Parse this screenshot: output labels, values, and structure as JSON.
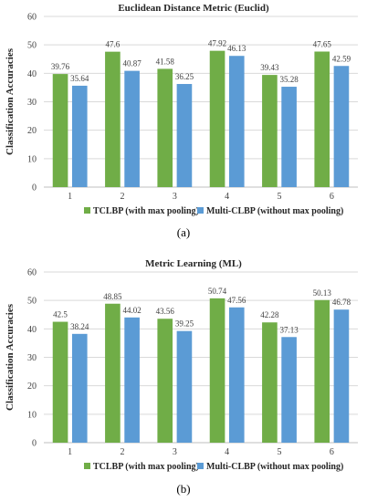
{
  "panels": [
    {
      "caption": "(a)",
      "chart_data": {
        "type": "bar",
        "title": "Euclidean Distance Metric (Euclid)",
        "xlabel": "",
        "ylabel": "Classification Accuracies",
        "categories": [
          "1",
          "2",
          "3",
          "4",
          "5",
          "6"
        ],
        "series": [
          {
            "name": "TCLBP (with max pooling)",
            "color": "#70ad47",
            "values": [
              39.76,
              47.6,
              41.58,
              47.92,
              39.43,
              47.65
            ]
          },
          {
            "name": "Multi-CLBP (without max pooling)",
            "color": "#5b9bd5",
            "values": [
              35.64,
              40.87,
              36.25,
              46.13,
              35.28,
              42.59
            ]
          }
        ],
        "ylim": [
          0,
          60
        ],
        "yticks": [
          0,
          10,
          20,
          30,
          40,
          50,
          60
        ],
        "grid": true,
        "legend": "bottom"
      }
    },
    {
      "caption": "(b)",
      "chart_data": {
        "type": "bar",
        "title": "Metric Learning (ML)",
        "xlabel": "",
        "ylabel": "Classification Accuracies",
        "categories": [
          "1",
          "2",
          "3",
          "4",
          "5",
          "6"
        ],
        "series": [
          {
            "name": "TCLBP (with max pooling)",
            "color": "#70ad47",
            "values": [
              42.5,
              48.85,
              43.56,
              50.74,
              42.28,
              50.13
            ]
          },
          {
            "name": "Multi-CLBP (without max pooling)",
            "color": "#5b9bd5",
            "values": [
              38.24,
              44.02,
              39.25,
              47.56,
              37.13,
              46.78
            ]
          }
        ],
        "ylim": [
          0,
          60
        ],
        "yticks": [
          0,
          10,
          20,
          30,
          40,
          50,
          60
        ],
        "grid": true,
        "legend": "bottom"
      }
    }
  ]
}
